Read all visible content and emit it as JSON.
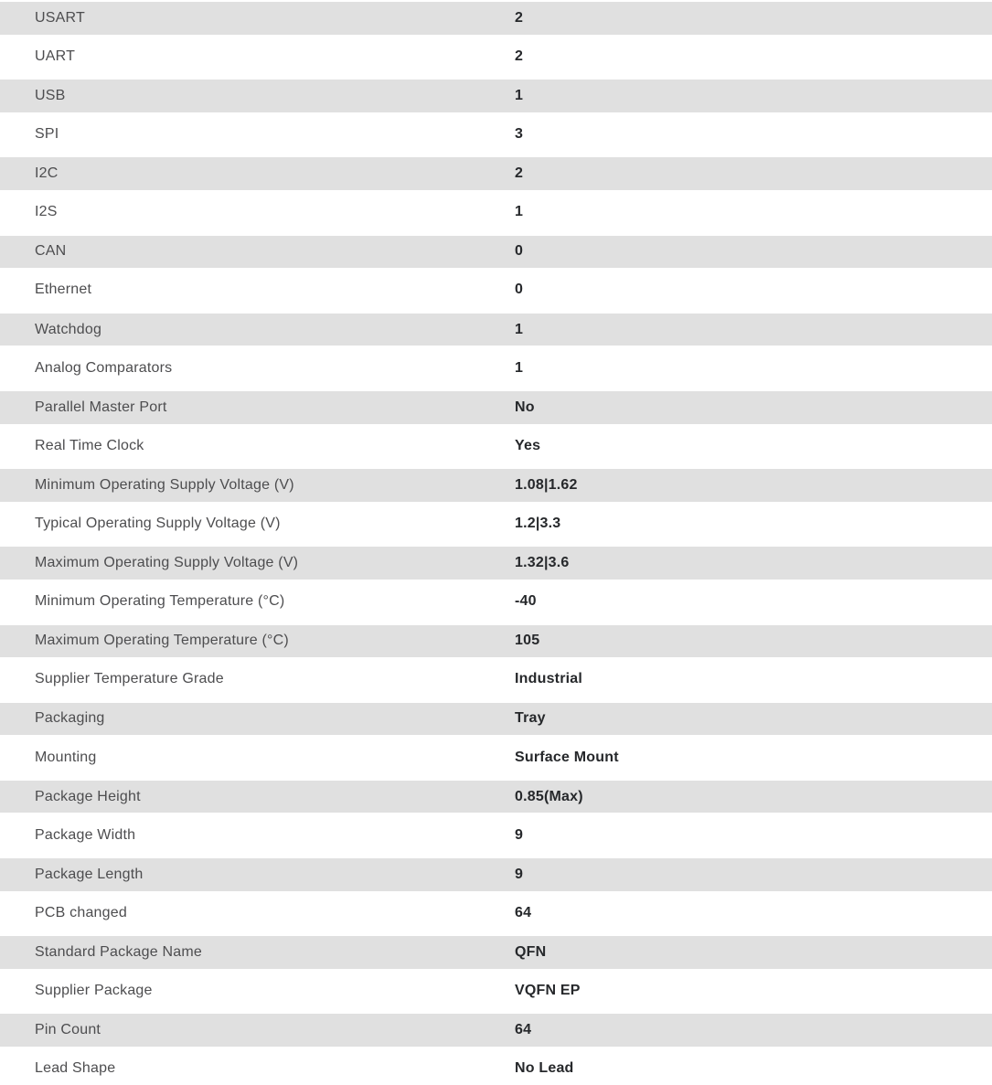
{
  "colors": {
    "row_alt_bg": "#e0e0e0",
    "row_bg": "#ffffff",
    "label_color": "#4d4d4f",
    "value_color": "#26282b"
  },
  "table": {
    "rows": [
      {
        "label": "USART",
        "value": "2"
      },
      {
        "label": "UART",
        "value": "2"
      },
      {
        "label": "USB",
        "value": "1"
      },
      {
        "label": "SPI",
        "value": "3"
      },
      {
        "label": "I2C",
        "value": "2"
      },
      {
        "label": "I2S",
        "value": "1"
      },
      {
        "label": "CAN",
        "value": "0"
      },
      {
        "label": "Ethernet",
        "value": "0"
      },
      {
        "label": "Watchdog",
        "value": "1"
      },
      {
        "label": "Analog Comparators",
        "value": "1"
      },
      {
        "label": "Parallel Master Port",
        "value": "No"
      },
      {
        "label": "Real Time Clock",
        "value": "Yes"
      },
      {
        "label": "Minimum Operating Supply Voltage (V)",
        "value": "1.08|1.62"
      },
      {
        "label": "Typical Operating Supply Voltage (V)",
        "value": "1.2|3.3"
      },
      {
        "label": "Maximum Operating Supply Voltage (V)",
        "value": "1.32|3.6"
      },
      {
        "label": "Minimum Operating Temperature (°C)",
        "value": "-40"
      },
      {
        "label": "Maximum Operating Temperature (°C)",
        "value": "105"
      },
      {
        "label": "Supplier Temperature Grade",
        "value": "Industrial"
      },
      {
        "label": "Packaging",
        "value": "Tray"
      },
      {
        "label": "Mounting",
        "value": "Surface Mount"
      },
      {
        "label": "Package Height",
        "value": "0.85(Max)"
      },
      {
        "label": "Package Width",
        "value": "9"
      },
      {
        "label": "Package Length",
        "value": "9"
      },
      {
        "label": "PCB changed",
        "value": "64"
      },
      {
        "label": "Standard Package Name",
        "value": "QFN"
      },
      {
        "label": "Supplier Package",
        "value": "VQFN EP"
      },
      {
        "label": "Pin Count",
        "value": "64"
      },
      {
        "label": "Lead Shape",
        "value": "No Lead"
      }
    ]
  }
}
